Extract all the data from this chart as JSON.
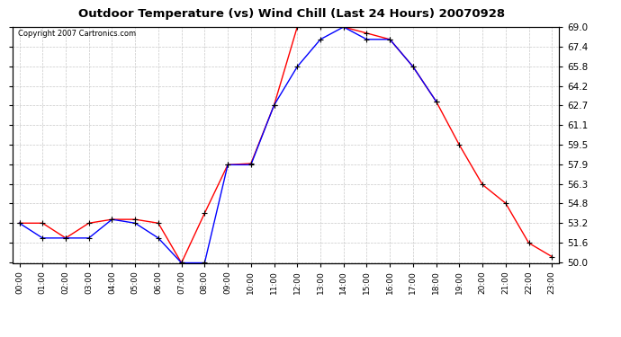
{
  "title": "Outdoor Temperature (vs) Wind Chill (Last 24 Hours) 20070928",
  "copyright": "Copyright 2007 Cartronics.com",
  "x_labels": [
    "00:00",
    "01:00",
    "02:00",
    "03:00",
    "04:00",
    "05:00",
    "06:00",
    "07:00",
    "08:00",
    "09:00",
    "10:00",
    "11:00",
    "12:00",
    "13:00",
    "14:00",
    "15:00",
    "16:00",
    "17:00",
    "18:00",
    "19:00",
    "20:00",
    "21:00",
    "22:00",
    "23:00"
  ],
  "temp_data": [
    53.2,
    53.2,
    52.0,
    53.2,
    53.5,
    53.5,
    53.2,
    50.0,
    54.0,
    57.9,
    58.0,
    62.7,
    69.0,
    69.0,
    69.0,
    68.5,
    68.0,
    65.8,
    63.0,
    59.5,
    56.3,
    54.8,
    51.6,
    50.5
  ],
  "windchill_data": [
    53.2,
    52.0,
    52.0,
    52.0,
    53.5,
    53.2,
    52.0,
    50.0,
    50.0,
    57.9,
    57.9,
    62.7,
    65.8,
    68.0,
    69.0,
    68.0,
    68.0,
    65.8,
    63.0,
    null,
    null,
    null,
    null,
    null
  ],
  "temp_color": "#ff0000",
  "windchill_color": "#0000ff",
  "background_color": "#ffffff",
  "plot_bg_color": "#ffffff",
  "grid_color": "#c8c8c8",
  "y_min": 50.0,
  "y_max": 69.0,
  "y_ticks": [
    50.0,
    51.6,
    53.2,
    54.8,
    56.3,
    57.9,
    59.5,
    61.1,
    62.7,
    64.2,
    65.8,
    67.4,
    69.0
  ]
}
